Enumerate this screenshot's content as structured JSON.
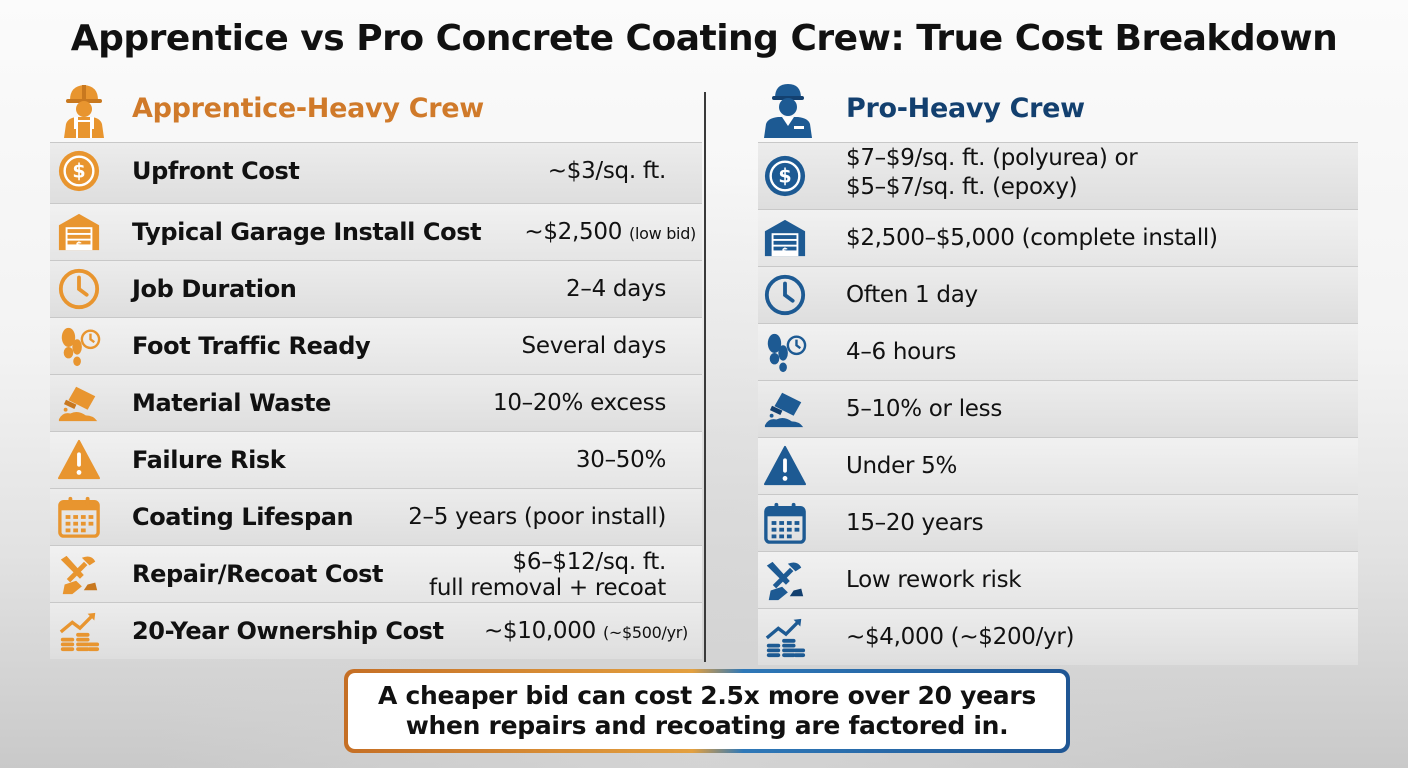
{
  "title": "Apprentice vs Pro Concrete Coating Crew: True Cost Breakdown",
  "colors": {
    "apprentice_accent": "#d07a2a",
    "pro_accent": "#13406f"
  },
  "apprentice": {
    "heading": "Apprentice-Heavy Crew",
    "heading_icon": "worker-hardhat-icon",
    "rows": [
      {
        "label": "Upfront Cost",
        "value": "~$3/sq. ft.",
        "icon": "dollar-coin-icon"
      },
      {
        "label": "Typical Garage Install Cost",
        "value": "~$2,500",
        "note": "(low bid)",
        "icon": "garage-icon"
      },
      {
        "label": "Job Duration",
        "value": "2–4 days",
        "icon": "clock-icon"
      },
      {
        "label": "Foot Traffic Ready",
        "value": "Several days",
        "icon": "footprint-clock-icon"
      },
      {
        "label": "Material Waste",
        "value": "10–20% excess",
        "icon": "paint-spill-icon"
      },
      {
        "label": "Failure Risk",
        "value": "30–50%",
        "icon": "warning-icon"
      },
      {
        "label": "Coating Lifespan",
        "value": "2–5 years (poor install)",
        "icon": "calendar-icon"
      },
      {
        "label": "Repair/Recoat Cost",
        "value": "$6–$12/sq. ft.",
        "value2": "full removal + recoat",
        "icon": "repair-tools-icon"
      },
      {
        "label": "20-Year Ownership Cost",
        "value": "~$10,000",
        "note": "(~$500/yr)",
        "icon": "coins-growth-icon"
      }
    ]
  },
  "pro": {
    "heading": "Pro-Heavy Crew",
    "heading_icon": "pro-worker-icon",
    "rows": [
      {
        "value": "$7–$9/sq. ft. (polyurea) or",
        "value2": "$5–$7/sq. ft. (epoxy)",
        "icon": "dollar-coin-icon"
      },
      {
        "value": "$2,500–$5,000 (complete install)",
        "icon": "garage-icon"
      },
      {
        "value": "Often 1 day",
        "icon": "clock-icon"
      },
      {
        "value": "4–6 hours",
        "icon": "footprint-clock-icon"
      },
      {
        "value": "5–10% or less",
        "icon": "paint-spill-icon"
      },
      {
        "value": "Under 5%",
        "icon": "warning-icon"
      },
      {
        "value": "15–20 years",
        "icon": "calendar-icon"
      },
      {
        "value": "Low rework risk",
        "icon": "repair-tools-icon"
      },
      {
        "value": "~$4,000 (~$200/yr)",
        "icon": "coins-growth-icon"
      }
    ]
  },
  "callout": {
    "line1": "A cheaper bid can cost 2.5x more over 20 years",
    "line2": "when repairs and recoating are factored in."
  }
}
